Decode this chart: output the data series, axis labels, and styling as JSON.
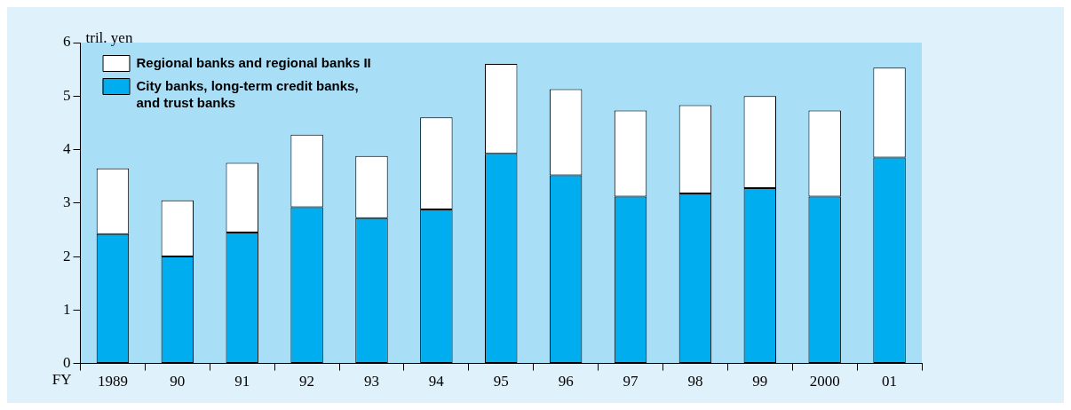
{
  "chart_data": {
    "type": "bar",
    "stacked": true,
    "ylabel": "tril. yen",
    "xlabel": "FY",
    "categories": [
      "1989",
      "90",
      "91",
      "92",
      "93",
      "94",
      "95",
      "96",
      "97",
      "98",
      "99",
      "2000",
      "01"
    ],
    "series": [
      {
        "name": "City banks, long-term credit banks, and trust banks",
        "color": "#00aeef",
        "values": [
          2.42,
          2.0,
          2.45,
          2.92,
          2.72,
          2.88,
          3.92,
          3.52,
          3.12,
          3.18,
          3.28,
          3.12,
          3.85
        ]
      },
      {
        "name": "Regional banks and regional banks II",
        "color": "#ffffff",
        "values": [
          1.23,
          1.05,
          1.3,
          1.36,
          1.16,
          1.72,
          1.68,
          1.61,
          1.61,
          1.65,
          1.72,
          1.61,
          1.68
        ]
      }
    ],
    "ylim": [
      0,
      6
    ],
    "yticks": [
      0,
      1,
      2,
      3,
      4,
      5,
      6
    ],
    "grid": false,
    "legend": "top left"
  }
}
